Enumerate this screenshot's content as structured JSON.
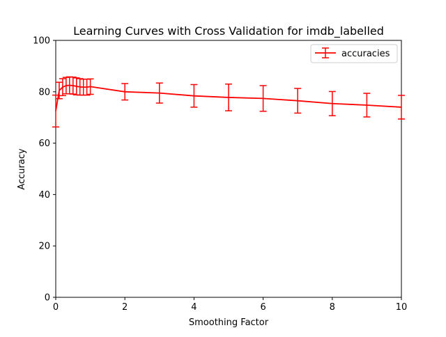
{
  "chart_data": {
    "type": "line",
    "title": "Learning Curves with Cross Validation for imdb_labelled",
    "xlabel": "Smoothing Factor",
    "ylabel": "Accuracy",
    "xlim": [
      0,
      10
    ],
    "ylim": [
      0,
      100
    ],
    "x_ticks": [
      0,
      2,
      4,
      6,
      8,
      10
    ],
    "y_ticks": [
      0,
      20,
      40,
      60,
      80,
      100
    ],
    "grid": false,
    "legend_position": "top-right",
    "series": [
      {
        "name": "accuracies",
        "color": "#ff0000",
        "x": [
          0,
          0.1,
          0.2,
          0.3,
          0.4,
          0.5,
          0.6,
          0.7,
          0.8,
          0.9,
          1,
          2,
          3,
          4,
          5,
          6,
          7,
          8,
          9,
          10
        ],
        "y": [
          72.5,
          80.5,
          81.8,
          82.4,
          82.5,
          82.4,
          82.1,
          81.9,
          81.8,
          81.8,
          82.0,
          80.0,
          79.5,
          78.4,
          77.8,
          77.4,
          76.5,
          75.4,
          74.8,
          74.0
        ],
        "yerr": [
          6.2,
          3.2,
          3.3,
          3.2,
          3.3,
          3.3,
          3.3,
          3.2,
          3.1,
          3.1,
          3.0,
          3.2,
          3.9,
          4.4,
          5.2,
          5.0,
          4.8,
          4.7,
          4.6,
          4.6
        ]
      }
    ]
  }
}
